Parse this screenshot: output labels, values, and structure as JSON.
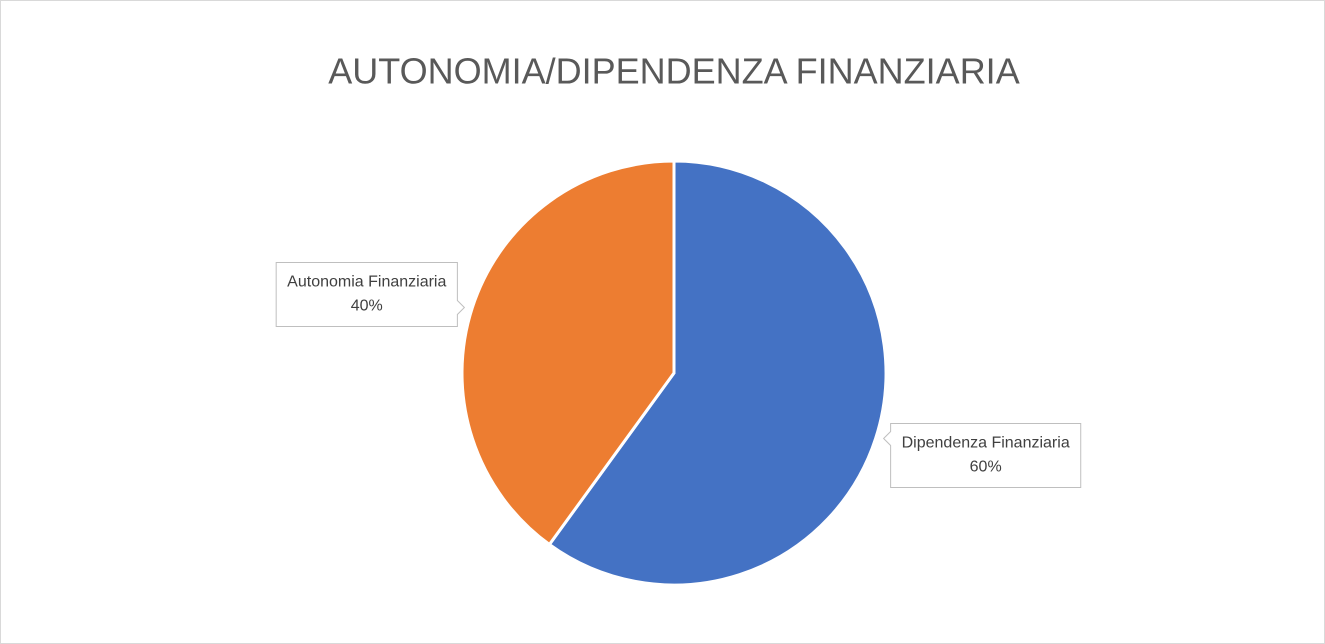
{
  "chart_data": {
    "type": "pie",
    "title": "AUTONOMIA/DIPENDENZA FINANZIARIA",
    "categories": [
      "Dipendenza Finanziaria",
      "Autonomia Finanziaria"
    ],
    "values": [
      60,
      40
    ],
    "value_labels": [
      "60%",
      "40%"
    ],
    "colors": [
      "#4472c4",
      "#ed7d31"
    ]
  }
}
